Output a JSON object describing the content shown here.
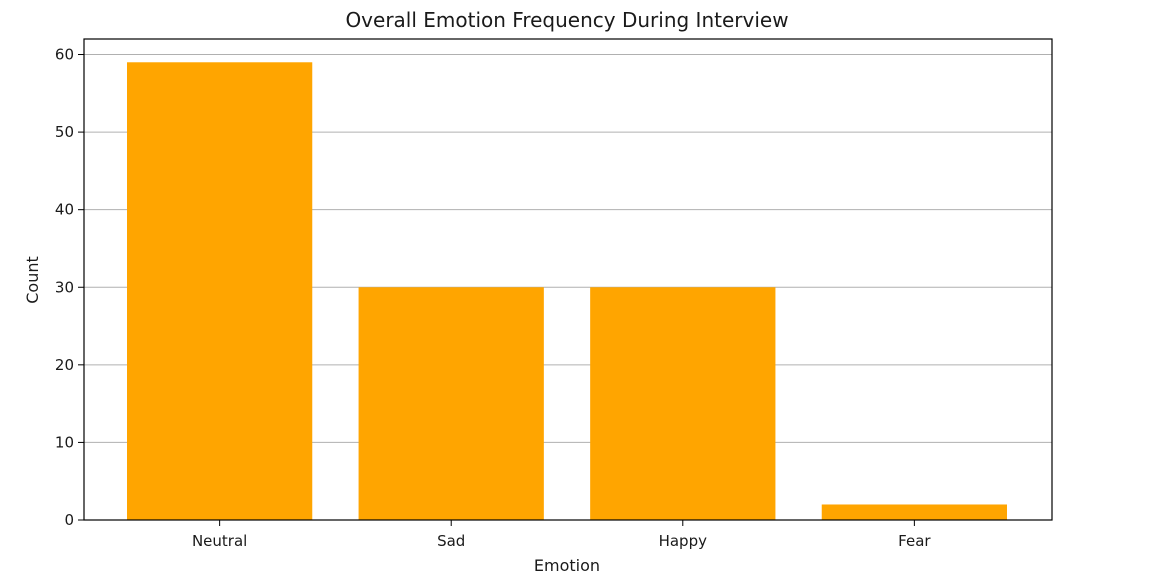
{
  "chart_data": {
    "type": "bar",
    "title": "Overall Emotion Frequency During Interview",
    "xlabel": "Emotion",
    "ylabel": "Count",
    "categories": [
      "Neutral",
      "Sad",
      "Happy",
      "Fear"
    ],
    "values": [
      59,
      30,
      30,
      2
    ],
    "ylim": [
      0,
      62
    ],
    "yticks": [
      0,
      10,
      20,
      30,
      40,
      50,
      60
    ],
    "grid": "y",
    "bar_color": "#ffa500",
    "legend": "none"
  }
}
